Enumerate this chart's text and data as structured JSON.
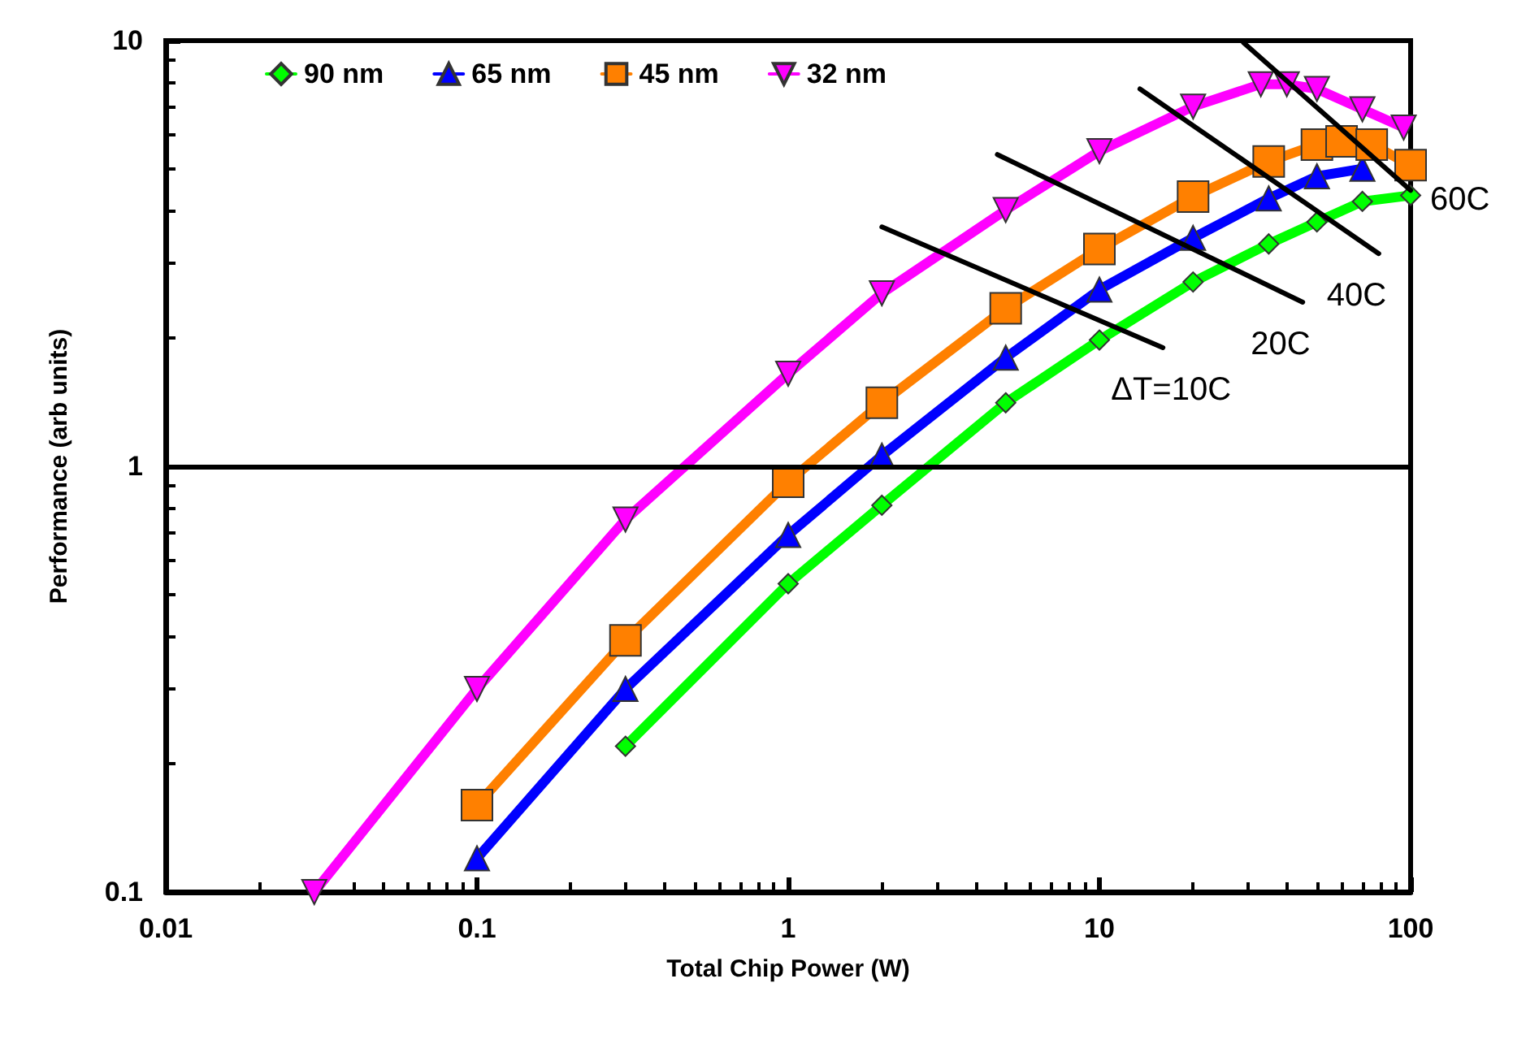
{
  "chart_data": {
    "type": "line",
    "xlabel": "Total Chip Power (W)",
    "ylabel": "Performance (arb units)",
    "log": "xy",
    "xlim": [
      0.01,
      100
    ],
    "ylim": [
      0.1,
      10
    ],
    "xticks": [
      0.01,
      0.1,
      1,
      10,
      100
    ],
    "yticks": [
      0.1,
      1,
      10
    ],
    "grid": false,
    "legend": "top left",
    "line_style": "solid",
    "ref_lines": [
      {
        "axis": "y",
        "value": 1,
        "color": "#000000"
      }
    ],
    "series": [
      {
        "name": "90 nm",
        "color": "#00ff00",
        "marker": "diamond",
        "x": [
          0.3,
          1,
          2,
          5,
          10,
          20,
          35,
          50,
          70,
          100
        ],
        "values": [
          0.22,
          0.53,
          0.81,
          1.41,
          1.98,
          2.71,
          3.33,
          3.75,
          4.19,
          4.33
        ]
      },
      {
        "name": "65 nm",
        "color": "#0000ff",
        "marker": "triangle",
        "x": [
          0.1,
          0.3,
          1,
          2,
          5,
          10,
          20,
          35,
          50,
          70
        ],
        "values": [
          0.12,
          0.3,
          0.69,
          1.06,
          1.8,
          2.6,
          3.44,
          4.26,
          4.8,
          5.0
        ]
      },
      {
        "name": "45 nm",
        "color": "#ff8000",
        "marker": "square",
        "x": [
          0.1,
          0.3,
          1,
          2,
          5,
          10,
          20,
          35,
          50,
          60,
          75,
          100
        ],
        "values": [
          0.16,
          0.39,
          0.92,
          1.41,
          2.35,
          3.24,
          4.3,
          5.2,
          5.7,
          5.8,
          5.7,
          5.1
        ]
      },
      {
        "name": "32 nm",
        "color": "#ff00ff",
        "marker": "triangle",
        "x": [
          0.03,
          0.1,
          0.3,
          1,
          2,
          5,
          10,
          20,
          33,
          40,
          50,
          70,
          95
        ],
        "values": [
          0.1,
          0.3,
          0.75,
          1.65,
          2.55,
          4.0,
          5.5,
          7.0,
          7.9,
          7.9,
          7.7,
          6.9,
          6.25
        ]
      },
      {
        "name": "ΔT=10C",
        "color": "#000000",
        "marker": "none",
        "x": [
          2,
          16
        ],
        "values": [
          3.65,
          1.9
        ]
      },
      {
        "name": "20C",
        "color": "#000000",
        "marker": "none",
        "x": [
          4.7,
          45
        ],
        "values": [
          5.4,
          2.43
        ]
      },
      {
        "name": "40C",
        "color": "#000000",
        "marker": "none",
        "x": [
          13.5,
          79
        ],
        "values": [
          7.7,
          3.16
        ]
      },
      {
        "name": "60C",
        "color": "#000000",
        "marker": "none",
        "x": [
          29,
          100
        ],
        "values": [
          9.9,
          4.45
        ]
      }
    ]
  }
}
